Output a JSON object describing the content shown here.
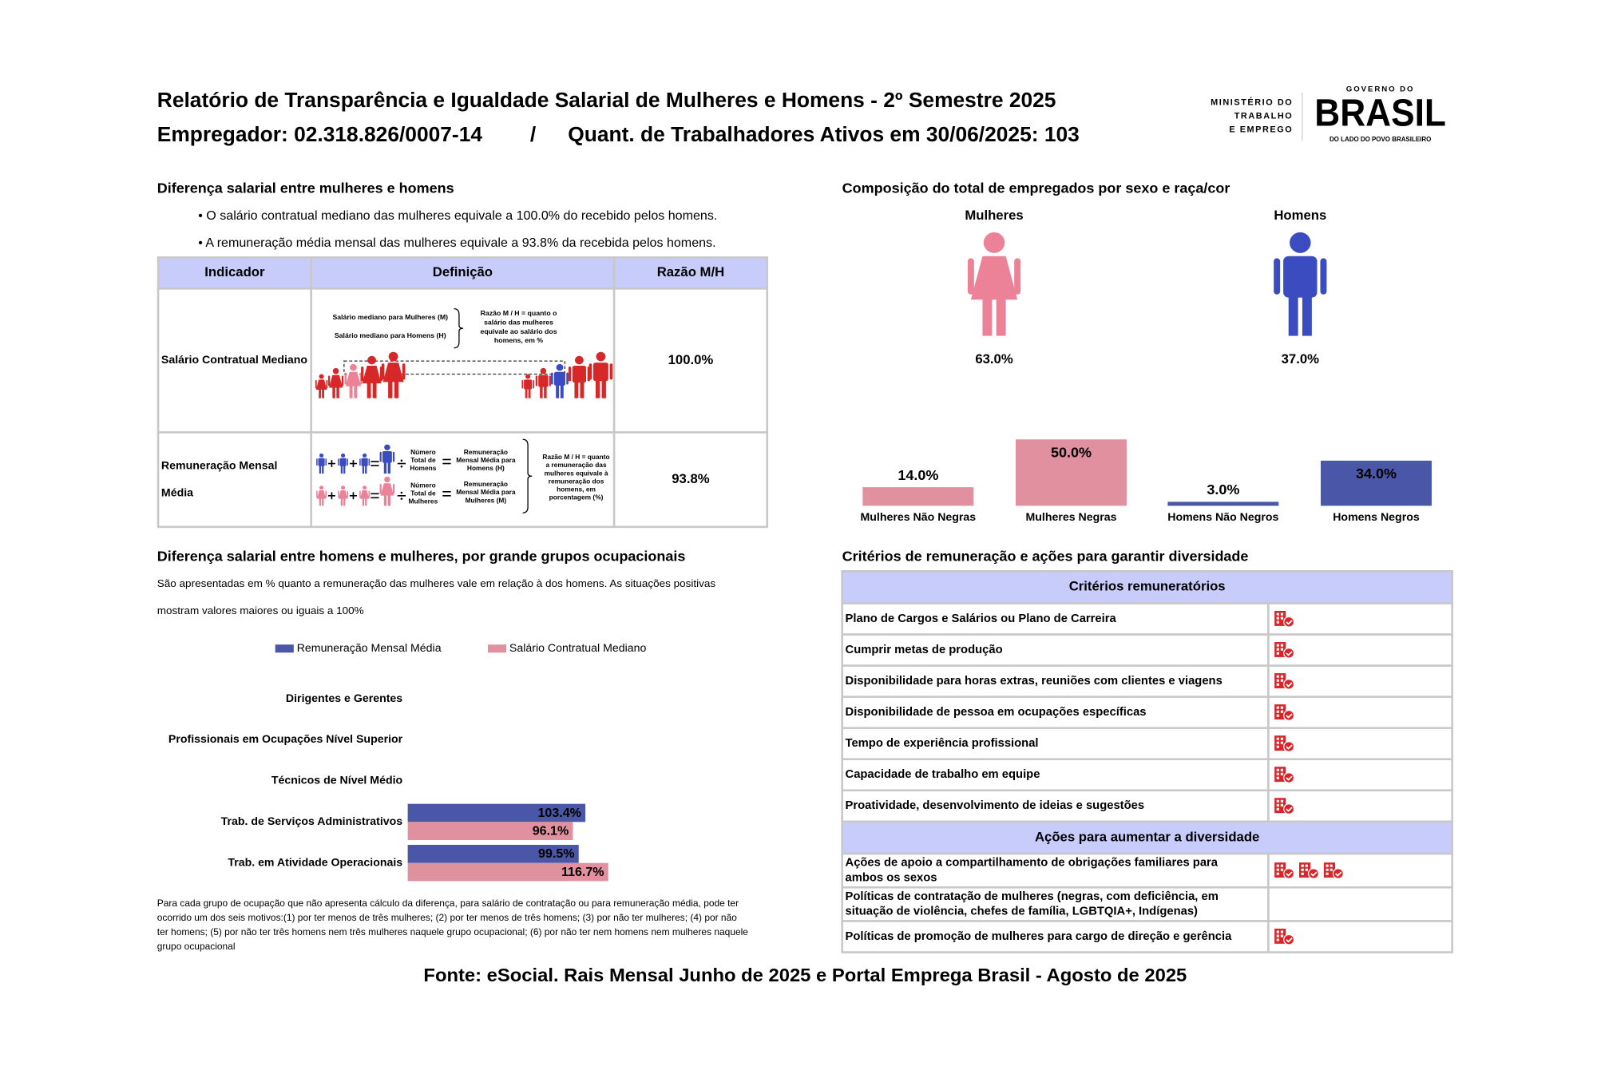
{
  "header": {
    "title": "Relatório de Transparência e Igualdade Salarial de Mulheres e Homens - 2º Semestre 2025",
    "employer": "Empregador: 02.318.826/0007-14",
    "separator": "/",
    "workers": "Quant. de Trabalhadores Ativos em 30/06/2025: 103"
  },
  "logo": {
    "ministry": [
      "MINISTÉRIO DO",
      "TRABALHO",
      "E EMPREGO"
    ],
    "government": "GOVERNO DO",
    "country": "BRASIL",
    "tagline": "DO LADO DO POVO BRASILEIRO"
  },
  "salary_gap": {
    "title": "Diferença salarial entre mulheres e homens",
    "bullets": [
      "• O salário contratual mediano das mulheres equivale a 100.0% do recebido pelos homens.",
      "• A remuneração média mensal das mulheres equivale a 93.8% da recebida pelos homens."
    ],
    "table": {
      "headers": [
        "Indicador",
        "Definição",
        "Razão M/H"
      ],
      "rows": [
        {
          "indicator": [
            "Salário Contratual Mediano"
          ],
          "ratio": "100.0%",
          "definition": {
            "women": "Salário mediano para Mulheres (M)",
            "men": "Salário mediano para Homens (H)",
            "note": [
              "Razão M / H = quanto o",
              "salário das mulheres",
              "equivale ao salário dos",
              "homens, em %"
            ]
          }
        },
        {
          "indicator": [
            "Remuneração Mensal",
            "Média"
          ],
          "ratio": "93.8%",
          "definition": {
            "men_count": [
              "Número",
              "Total de",
              "Homens"
            ],
            "men_pay": [
              "Remuneração",
              "Mensal Média para",
              "Homens (H)"
            ],
            "women_count": [
              "Número",
              "Total de",
              "Mulheres"
            ],
            "women_pay": [
              "Remuneração",
              "Mensal Média para",
              "Mulheres (M)"
            ],
            "note": [
              "Razão M / H = quanto",
              "a remuneração das",
              "mulheres equivale à",
              "remuneração dos",
              "homens, em",
              "porcentagem (%)"
            ]
          }
        }
      ]
    }
  },
  "composition": {
    "title": "Composição do total de empregados por sexo e raça/cor",
    "pictogram": {
      "categories": [
        "Mulheres",
        "Homens"
      ],
      "values": [
        63.0,
        37.0
      ],
      "value_labels": [
        "63.0%",
        "37.0%"
      ],
      "colors": [
        "#ec8298",
        "#3a4cc0"
      ]
    },
    "chart": {
      "type": "bar",
      "categories": [
        "Mulheres Não Negras",
        "Mulheres Negras",
        "Homens Não Negros",
        "Homens Negros"
      ],
      "values": [
        14.0,
        50.0,
        3.0,
        34.0
      ],
      "value_labels": [
        "14.0%",
        "50.0%",
        "3.0%",
        "34.0%"
      ],
      "colors": [
        "#e0909e",
        "#e0909e",
        "#4a56a8",
        "#4a56a8"
      ]
    }
  },
  "occupations": {
    "title": "Diferença salarial entre homens e mulheres, por grande grupos ocupacionais",
    "description": [
      "São apresentadas em % quanto a remuneração das mulheres vale em relação à dos homens. As situações positivas",
      "mostram valores maiores ou iguais a 100%"
    ],
    "chart": {
      "type": "bar",
      "orientation": "horizontal",
      "categories": [
        "Dirigentes e Gerentes",
        "Profissionais em Ocupações Nível Superior",
        "Técnicos de Nível Médio",
        "Trab. de Serviços Administrativos",
        "Trab. em Atividade Operacionais"
      ],
      "series": [
        {
          "name": "Remuneração Mensal Média",
          "color": "#4a56a8",
          "values": [
            null,
            null,
            null,
            103.4,
            99.5
          ],
          "value_labels": [
            null,
            null,
            null,
            "103.4%",
            "99.5%"
          ]
        },
        {
          "name": "Salário Contratual Mediano",
          "color": "#e0909e",
          "values": [
            null,
            null,
            null,
            96.1,
            116.7
          ],
          "value_labels": [
            null,
            null,
            null,
            "96.1%",
            "116.7%"
          ]
        }
      ]
    },
    "footnote": [
      "Para cada grupo de ocupação que não apresenta cálculo da diferença, para salário de contratação ou para remuneração média, pode ter",
      "ocorrido um dos seis motivos:(1) por ter menos de três mulheres; (2) por ter menos de três homens; (3) por não ter mulheres; (4) por não",
      "ter homens; (5) por não ter três homens nem três mulheres naquele grupo ocupacional; (6) por não ter nem homens nem mulheres naquele",
      "grupo ocupacional"
    ]
  },
  "criteria": {
    "title": "Critérios de remuneração e ações para garantir diversidade",
    "sections": [
      {
        "header": "Critérios remuneratórios",
        "rows": [
          {
            "label": [
              "Plano de Cargos e Salários ou Plano de Carreira"
            ],
            "icons": 1
          },
          {
            "label": [
              "Cumprir metas de produção"
            ],
            "icons": 1
          },
          {
            "label": [
              "Disponibilidade para horas extras, reuniões com clientes e viagens"
            ],
            "icons": 1
          },
          {
            "label": [
              "Disponibilidade de pessoa em ocupações específicas"
            ],
            "icons": 1
          },
          {
            "label": [
              "Tempo de experiência profissional"
            ],
            "icons": 1
          },
          {
            "label": [
              "Capacidade de trabalho em equipe"
            ],
            "icons": 1
          },
          {
            "label": [
              "Proatividade, desenvolvimento de ideias e sugestões"
            ],
            "icons": 1
          }
        ]
      },
      {
        "header": "Ações para aumentar a diversidade",
        "rows": [
          {
            "label": [
              "Ações de apoio a compartilhamento de obrigações familiares para",
              "ambos os sexos"
            ],
            "icons": 3
          },
          {
            "label": [
              "Políticas de contratação de mulheres (negras, com deficiência, em",
              "situação de violência, chefes de família, LGBTQIA+, Indígenas)"
            ],
            "icons": 0
          },
          {
            "label": [
              "Políticas de promoção de mulheres para cargo de direção e gerência"
            ],
            "icons": 1
          }
        ]
      }
    ]
  },
  "footer": {
    "source": "Fonte: eSocial. Rais Mensal Junho de 2025 e Portal Emprega Brasil - Agosto de 2025"
  }
}
